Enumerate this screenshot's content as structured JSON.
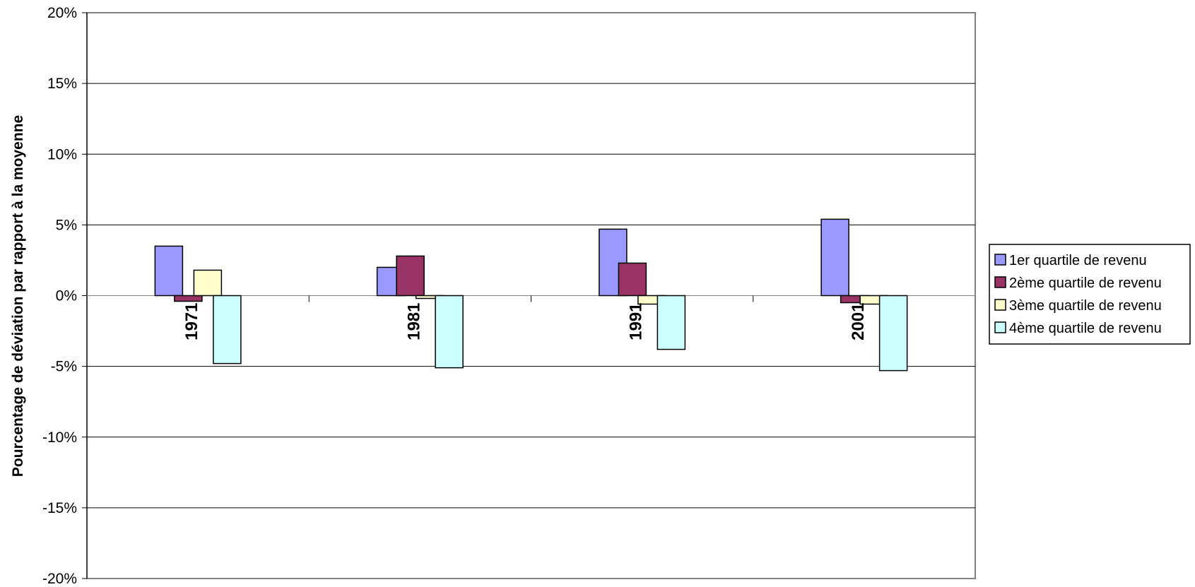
{
  "chart_data": {
    "type": "bar",
    "title": "",
    "xlabel": "",
    "ylabel": "Pourcentage de déviation par rapport à la moyenne",
    "ylim": [
      -20,
      20
    ],
    "yticks": [
      20,
      15,
      10,
      5,
      0,
      -5,
      -10,
      -15,
      -20
    ],
    "ytick_labels": [
      "20%",
      "15%",
      "10%",
      "5%",
      "0%",
      "-5%",
      "-10%",
      "-15%",
      "-20%"
    ],
    "categories": [
      "1971",
      "1981",
      "1991",
      "2001"
    ],
    "grid": true,
    "legend_position": "right",
    "series": [
      {
        "name": "1er quartile de revenu",
        "color": "#9999ff",
        "values": [
          3.5,
          2.0,
          4.7,
          5.4
        ]
      },
      {
        "name": "2ème quartile de revenu",
        "color": "#993366",
        "values": [
          -0.4,
          2.8,
          2.3,
          -0.5
        ]
      },
      {
        "name": "3ème quartile de revenu",
        "color": "#ffffcc",
        "values": [
          1.8,
          -0.2,
          -0.6,
          -0.6
        ]
      },
      {
        "name": "4ème quartile de revenu",
        "color": "#ccffff",
        "values": [
          -4.8,
          -5.1,
          -3.8,
          -5.3
        ]
      }
    ]
  }
}
